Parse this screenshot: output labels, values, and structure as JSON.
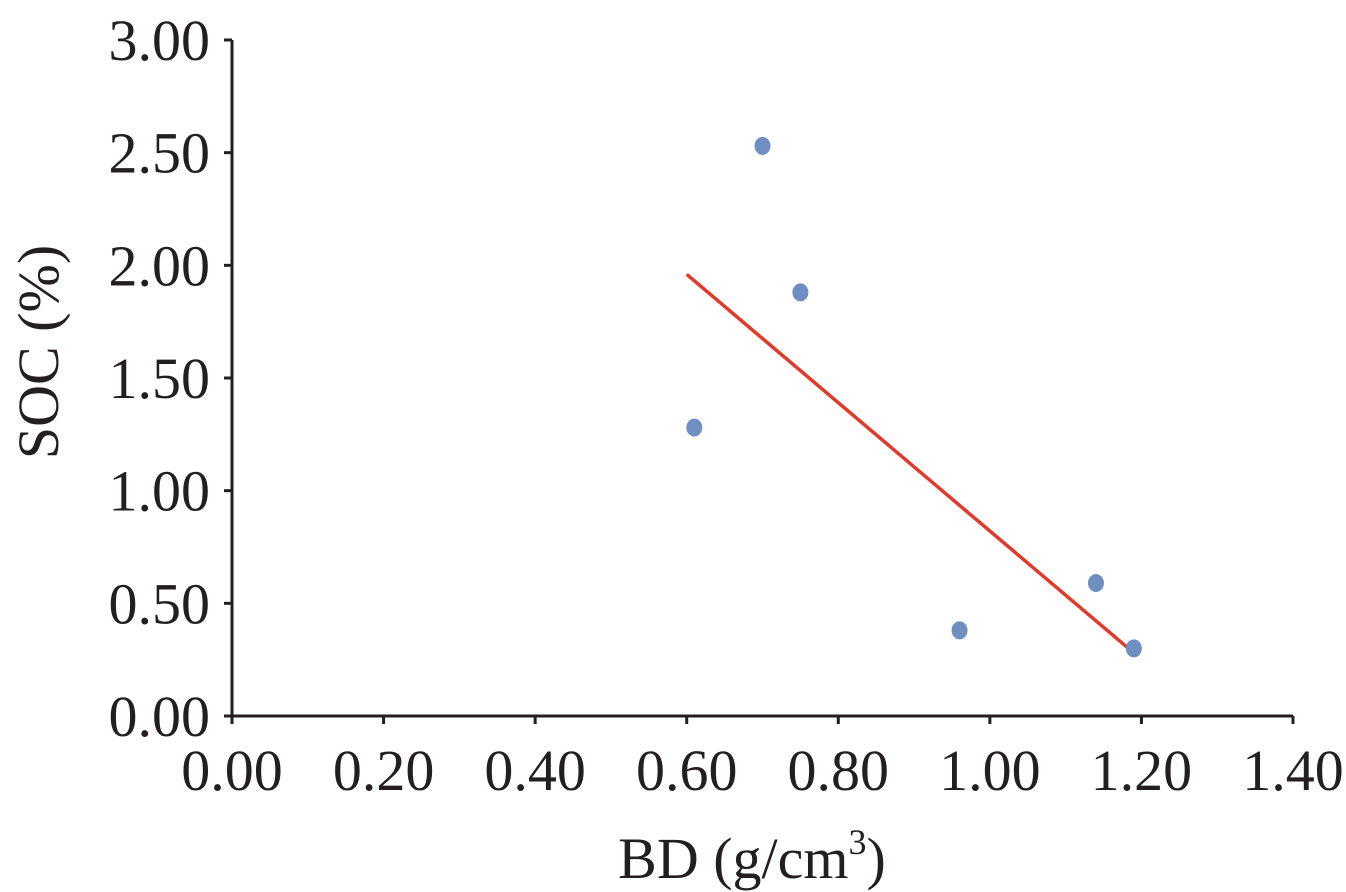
{
  "chart_data": {
    "type": "scatter",
    "xlabel": "BD (g/cm",
    "xlabel_superscript": "3",
    "xlabel_suffix": ")",
    "ylabel": "SOC (%)",
    "xlim": [
      0,
      1.4
    ],
    "ylim": [
      0,
      3.0
    ],
    "x_ticks": [
      0.0,
      0.2,
      0.4,
      0.6,
      0.8,
      1.0,
      1.2,
      1.4
    ],
    "x_tick_labels": [
      "0.00",
      "0.20",
      "0.40",
      "0.60",
      "0.80",
      "1.00",
      "1.20",
      "1.40"
    ],
    "y_ticks": [
      0.0,
      0.5,
      1.0,
      1.5,
      2.0,
      2.5,
      3.0
    ],
    "y_tick_labels": [
      "0.00",
      "0.50",
      "1.00",
      "1.50",
      "2.00",
      "2.50",
      "3.00"
    ],
    "grid": false,
    "series": [
      {
        "type": "scatter",
        "color": "#6f8fc3",
        "points": [
          {
            "x": 0.61,
            "y": 1.28
          },
          {
            "x": 0.7,
            "y": 2.53
          },
          {
            "x": 0.75,
            "y": 1.88
          },
          {
            "x": 0.96,
            "y": 0.38
          },
          {
            "x": 1.14,
            "y": 0.59
          },
          {
            "x": 1.19,
            "y": 0.3
          }
        ]
      },
      {
        "type": "line",
        "color": "#e03a2a",
        "points": [
          {
            "x": 0.6,
            "y": 1.96
          },
          {
            "x": 1.19,
            "y": 0.28
          }
        ]
      }
    ]
  }
}
